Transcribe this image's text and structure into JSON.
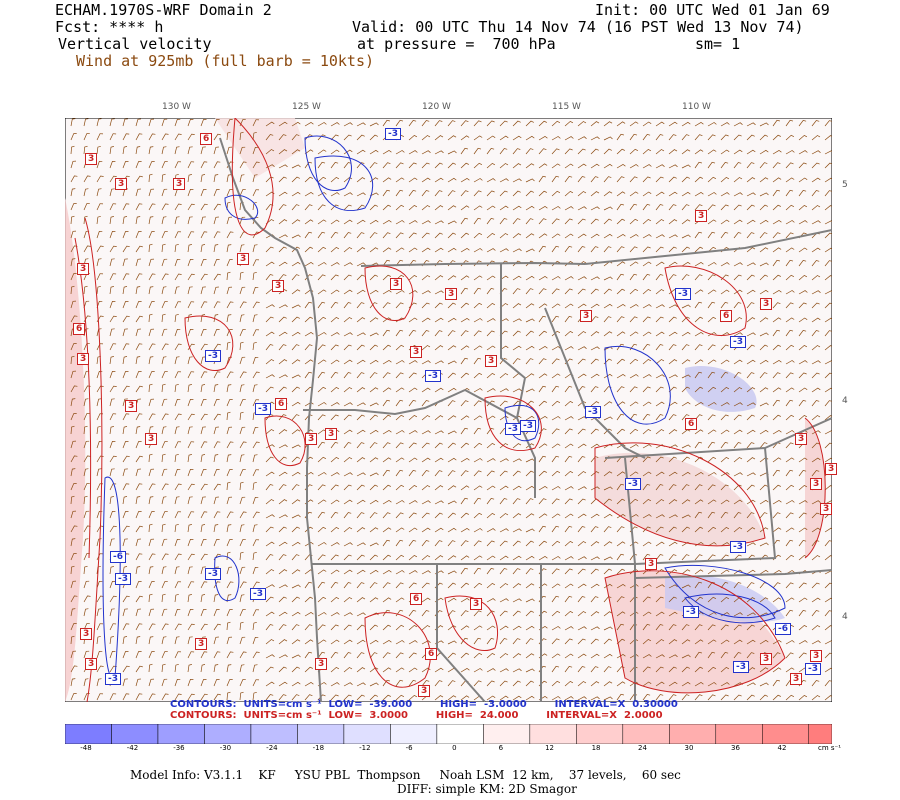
{
  "header": {
    "title": "ECHAM.1970S-WRF Domain 2",
    "init": "Init: 00 UTC Wed 01 Jan 69",
    "fcst": "Fcst: **** h",
    "valid": "Valid: 00 UTC Thu 14 Nov 74 (16 PST Wed 13 Nov 74)",
    "field": "Vertical velocity",
    "pressure": "at pressure =  700 hPa",
    "sm": "sm= 1",
    "wind": "Wind at 925mb (full barb = 10kts)"
  },
  "longitude_labels": [
    "130 W",
    "125 W",
    "120 W",
    "115 W",
    "110 W"
  ],
  "latitude_labels": [
    "5",
    "4",
    "4"
  ],
  "contours_blue": "CONTOURS:  UNITS=cm s⁻¹  LOW=  -39.000        HIGH=  -3.0000        INTERVAL=X  0.30000",
  "contours_red": "CONTOURS:  UNITS=cm s⁻¹  LOW=  3.0000        HIGH=  24.000        INTERVAL=X  2.0000",
  "colorbar": {
    "ticks": [
      "-48",
      "-42",
      "-36",
      "-30",
      "-24",
      "-18",
      "-12",
      "-6",
      "0",
      "6",
      "12",
      "18",
      "24",
      "30",
      "36",
      "42"
    ],
    "unit": "cm s⁻¹"
  },
  "contour_labels": {
    "blue": [
      "-3",
      "-3",
      "-3",
      "-3",
      "-3",
      "-3",
      "-3",
      "-3",
      "-3",
      "-3",
      "-3",
      "-3",
      "-3",
      "-6",
      "-3",
      "-3",
      "-3",
      "-3",
      "-6",
      "-3"
    ],
    "red": [
      "3",
      "6",
      "3",
      "3",
      "3",
      "6",
      "3",
      "3",
      "3",
      "3",
      "3",
      "6",
      "3",
      "3",
      "3",
      "3",
      "3",
      "3",
      "3",
      "6",
      "3",
      "3",
      "3",
      "3",
      "3",
      "3",
      "3",
      "3",
      "3",
      "6",
      "3",
      "3",
      "6",
      "3",
      "3",
      "3",
      "3",
      "6",
      "3"
    ]
  },
  "footer": {
    "line1": "Model Info: V3.1.1    KF     YSU PBL  Thompson     Noah LSM  12 km,    37 levels,    60 sec",
    "line2": "DIFF: simple KM: 2D Smagor"
  },
  "colors": {
    "blue_contour": "#2233cc",
    "red_contour": "#cc2222",
    "barb": "#8b4a10",
    "border": "#808080"
  }
}
